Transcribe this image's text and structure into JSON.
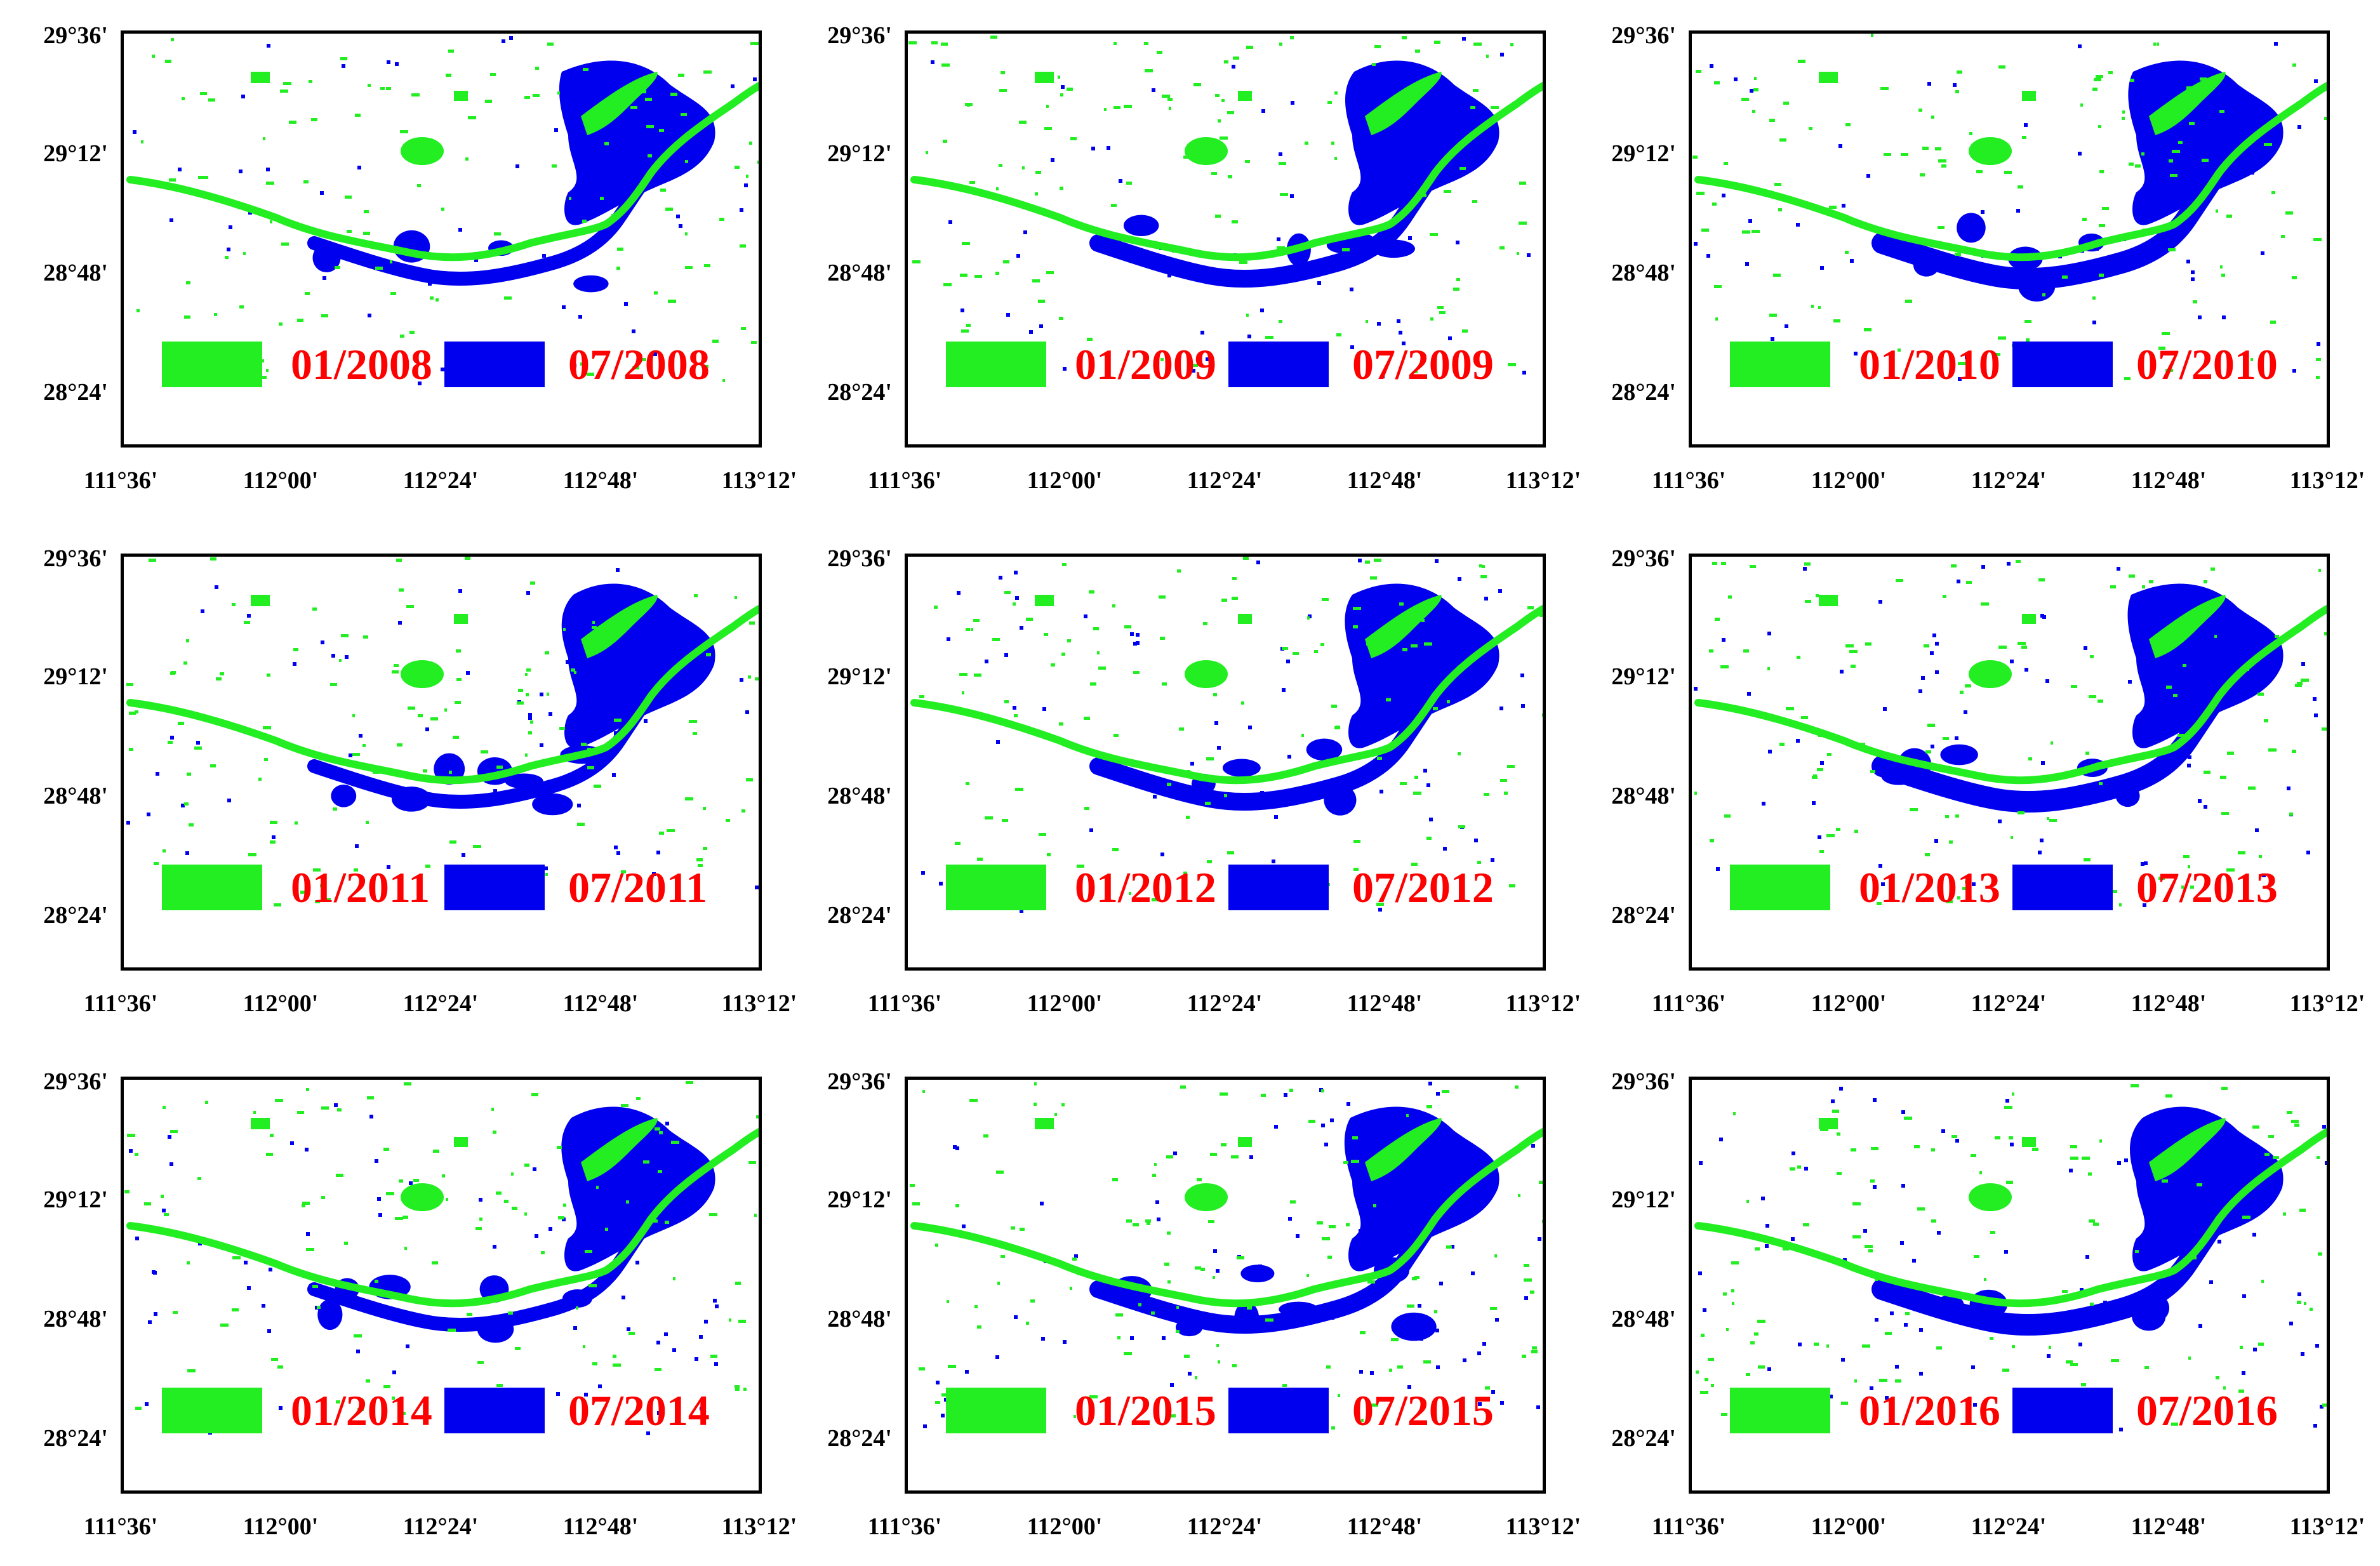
{
  "figure": {
    "colors": {
      "january": "#22ee22",
      "july": "#0000ee",
      "label_text": "#ff0000",
      "axis": "#000000"
    },
    "y_ticks": [
      "29°36'",
      "29°12'",
      "28°48'",
      "28°24'"
    ],
    "x_ticks": [
      "111°36'",
      "112°00'",
      "112°24'",
      "112°48'",
      "113°12'"
    ],
    "panels": [
      {
        "id": "p2008",
        "legend_jan": "01/2008",
        "legend_jul": "07/2008"
      },
      {
        "id": "p2009",
        "legend_jan": "01/2009",
        "legend_jul": "07/2009"
      },
      {
        "id": "p2010",
        "legend_jan": "01/2010",
        "legend_jul": "07/2010"
      },
      {
        "id": "p2011",
        "legend_jan": "01/2011",
        "legend_jul": "07/2011"
      },
      {
        "id": "p2012",
        "legend_jan": "01/2012",
        "legend_jul": "07/2012"
      },
      {
        "id": "p2013",
        "legend_jan": "01/2013",
        "legend_jul": "07/2013"
      },
      {
        "id": "p2014",
        "legend_jan": "01/2014",
        "legend_jul": "07/2014"
      },
      {
        "id": "p2015",
        "legend_jan": "01/2015",
        "legend_jul": "07/2015"
      },
      {
        "id": "p2016",
        "legend_jan": "01/2016",
        "legend_jul": "07/2016"
      }
    ]
  }
}
